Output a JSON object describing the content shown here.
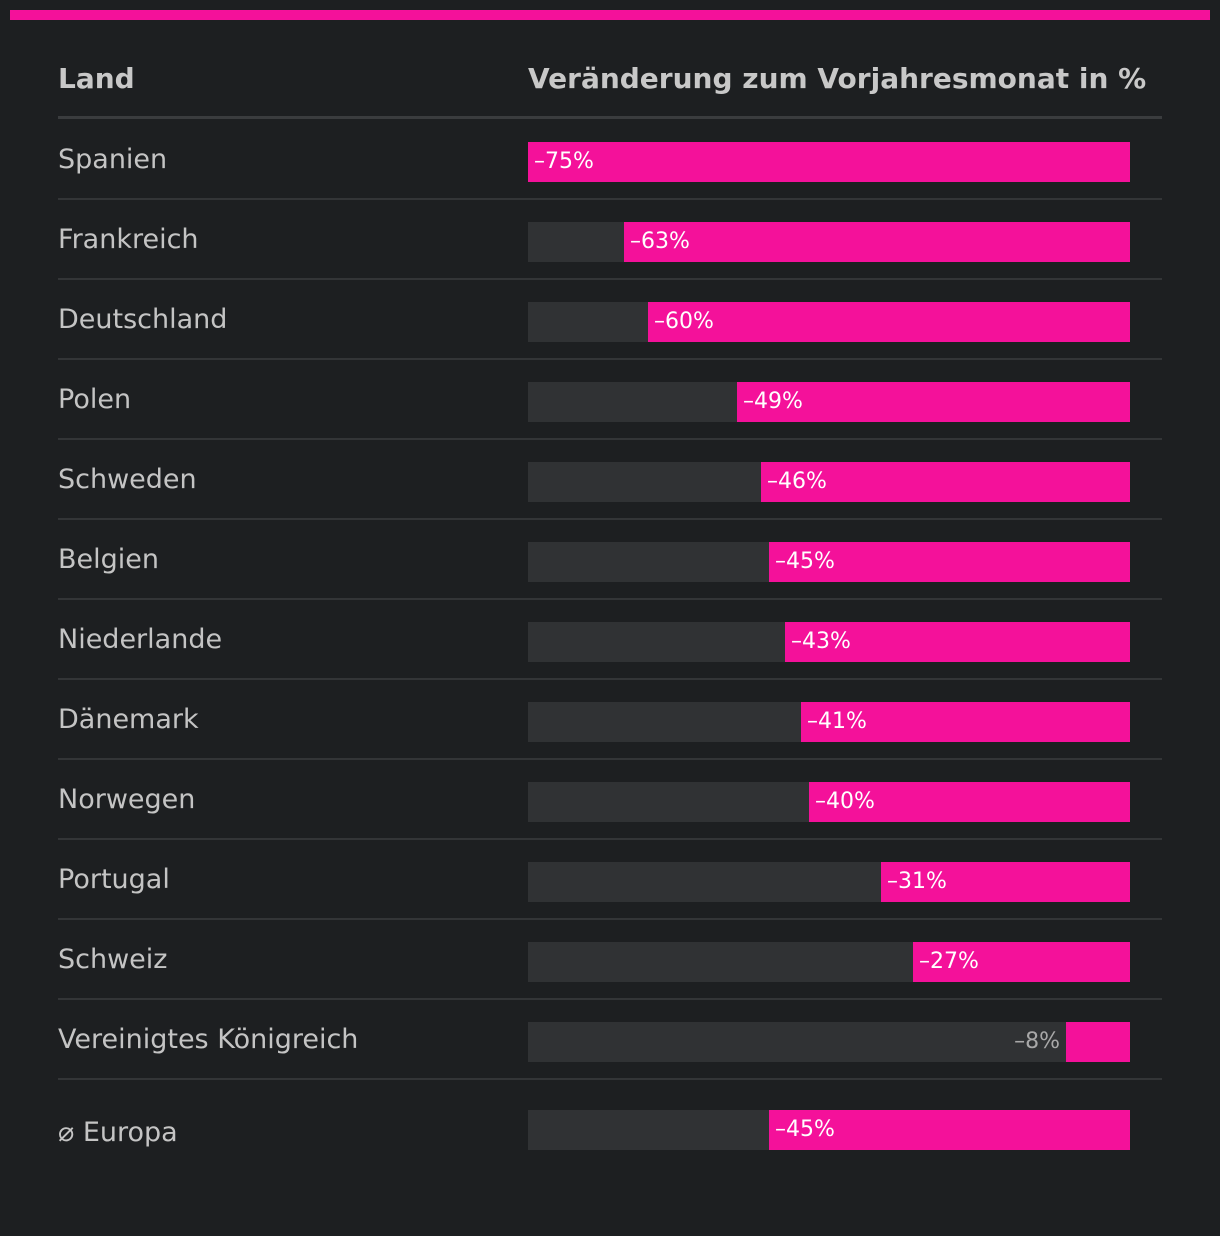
{
  "chart_data": {
    "type": "bar",
    "orientation": "horizontal",
    "headers": {
      "land": "Land",
      "change": "Veränderung zum Vorjahresmonat in %"
    },
    "categories": [
      "Spanien",
      "Frankreich",
      "Deutschland",
      "Polen",
      "Schweden",
      "Belgien",
      "Niederlande",
      "Dänemark",
      "Norwegen",
      "Portugal",
      "Schweiz",
      "Vereinigtes Königreich"
    ],
    "values": [
      -75,
      -63,
      -60,
      -49,
      -46,
      -45,
      -43,
      -41,
      -40,
      -31,
      -27,
      -8
    ],
    "value_labels": [
      "–75%",
      "–63%",
      "–60%",
      "–49%",
      "–46%",
      "–45%",
      "–43%",
      "–41%",
      "–40%",
      "–31%",
      "–27%",
      "–8%"
    ],
    "average": {
      "label": "⌀ Europa",
      "value": -45,
      "value_label": "–45%"
    },
    "xlim": [
      -75,
      0
    ],
    "grid": false,
    "colors": {
      "bar": "#f4119a",
      "track": "#303234",
      "accent": "#f4119a"
    }
  }
}
